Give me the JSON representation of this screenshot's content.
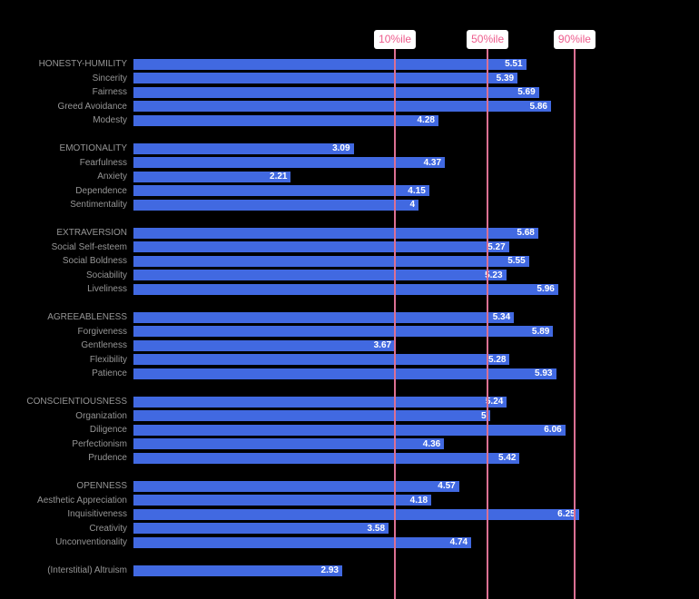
{
  "chart_data": {
    "type": "bar",
    "orientation": "horizontal",
    "title": "",
    "xlabel": "",
    "ylabel": "",
    "xlim": [
      0,
      7.94
    ],
    "grid": false,
    "bar_color": "#4169e1",
    "value_label_color": "#ffffff",
    "category_label_color": "#969696",
    "percentile_line_color": "#db7093",
    "percentile_text_color": "#ee5c8d",
    "percentile_box_color": "#ffffff",
    "background_color": "#000000",
    "percentiles": [
      {
        "label": "10%ile",
        "value": 3.67
      },
      {
        "label": "50%ile",
        "value": 4.97
      },
      {
        "label": "90%ile",
        "value": 6.19
      }
    ],
    "groups": [
      {
        "name": "honesty-humility",
        "rows": [
          {
            "label": "HONESTY-HUMILITY",
            "value": 5.51,
            "display": "5.51"
          },
          {
            "label": "Sincerity",
            "value": 5.39,
            "display": "5.39"
          },
          {
            "label": "Fairness",
            "value": 5.69,
            "display": "5.69"
          },
          {
            "label": "Greed Avoidance",
            "value": 5.86,
            "display": "5.86"
          },
          {
            "label": "Modesty",
            "value": 4.28,
            "display": "4.28"
          }
        ]
      },
      {
        "name": "emotionality",
        "rows": [
          {
            "label": "EMOTIONALITY",
            "value": 3.09,
            "display": "3.09"
          },
          {
            "label": "Fearfulness",
            "value": 4.37,
            "display": "4.37"
          },
          {
            "label": "Anxiety",
            "value": 2.21,
            "display": "2.21"
          },
          {
            "label": "Dependence",
            "value": 4.15,
            "display": "4.15"
          },
          {
            "label": "Sentimentality",
            "value": 4,
            "display": "4"
          }
        ]
      },
      {
        "name": "extraversion",
        "rows": [
          {
            "label": "EXTRAVERSION",
            "value": 5.68,
            "display": "5.68"
          },
          {
            "label": "Social Self-esteem",
            "value": 5.27,
            "display": "5.27"
          },
          {
            "label": "Social Boldness",
            "value": 5.55,
            "display": "5.55"
          },
          {
            "label": "Sociability",
            "value": 5.23,
            "display": "5.23"
          },
          {
            "label": "Liveliness",
            "value": 5.96,
            "display": "5.96"
          }
        ]
      },
      {
        "name": "agreeableness",
        "rows": [
          {
            "label": "AGREEABLENESS",
            "value": 5.34,
            "display": "5.34"
          },
          {
            "label": "Forgiveness",
            "value": 5.89,
            "display": "5.89"
          },
          {
            "label": "Gentleness",
            "value": 3.67,
            "display": "3.67"
          },
          {
            "label": "Flexibility",
            "value": 5.28,
            "display": "5.28"
          },
          {
            "label": "Patience",
            "value": 5.93,
            "display": "5.93"
          }
        ]
      },
      {
        "name": "conscientiousness",
        "rows": [
          {
            "label": "CONSCIENTIOUSNESS",
            "value": 5.24,
            "display": "5.24"
          },
          {
            "label": "Organization",
            "value": 5,
            "display": "5"
          },
          {
            "label": "Diligence",
            "value": 6.06,
            "display": "6.06"
          },
          {
            "label": "Perfectionism",
            "value": 4.36,
            "display": "4.36"
          },
          {
            "label": "Prudence",
            "value": 5.42,
            "display": "5.42"
          }
        ]
      },
      {
        "name": "openness",
        "rows": [
          {
            "label": "OPENNESS",
            "value": 4.57,
            "display": "4.57"
          },
          {
            "label": "Aesthetic Appreciation",
            "value": 4.18,
            "display": "4.18"
          },
          {
            "label": "Inquisitiveness",
            "value": 6.25,
            "display": "6.25"
          },
          {
            "label": "Creativity",
            "value": 3.58,
            "display": "3.58"
          },
          {
            "label": "Unconventionality",
            "value": 4.74,
            "display": "4.74"
          }
        ]
      },
      {
        "name": "interstitial",
        "rows": [
          {
            "label": "(Interstitial) Altruism",
            "value": 2.93,
            "display": "2.93"
          }
        ]
      }
    ]
  }
}
